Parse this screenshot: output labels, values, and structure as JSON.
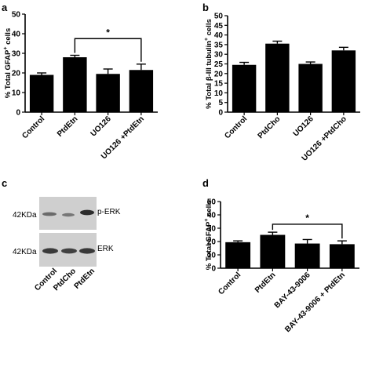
{
  "panels": [
    {
      "letter": "a"
    },
    {
      "letter": "b"
    },
    {
      "letter": "c"
    },
    {
      "letter": "d"
    }
  ],
  "chart_data": [
    {
      "panel": "a",
      "type": "bar",
      "ylabel_parts": [
        "% Total GFAP",
        "+",
        " cells"
      ],
      "ylim": [
        0,
        50
      ],
      "yticks": [
        0,
        10,
        20,
        30,
        40,
        50
      ],
      "categories": [
        "Control",
        "PtdEtn",
        "UO126",
        "UO126 +PtdEtn"
      ],
      "values": [
        19,
        28,
        19.5,
        21.5
      ],
      "errors": [
        1,
        1,
        2.5,
        3
      ],
      "significance": [
        {
          "from": 1,
          "to": 3,
          "label": "*",
          "at": 37.5
        }
      ]
    },
    {
      "panel": "b",
      "type": "bar",
      "ylabel_parts": [
        "% Total β-III tubulin",
        "+",
        " cells"
      ],
      "ylim": [
        0,
        50
      ],
      "yticks": [
        0,
        5,
        10,
        15,
        20,
        25,
        30,
        35,
        40,
        45,
        50
      ],
      "categories": [
        "Control",
        "PtdCho",
        "UO126",
        "UO126 +PtdCho"
      ],
      "values": [
        24.5,
        35.5,
        25,
        32
      ],
      "errors": [
        1.3,
        1.3,
        1,
        1.6
      ],
      "significance": []
    },
    {
      "panel": "d",
      "type": "bar",
      "ylabel_parts": [
        "% Total GFAP",
        "+",
        " cells"
      ],
      "ylim": [
        0,
        50
      ],
      "yticks": [
        0,
        10,
        20,
        30,
        40,
        50
      ],
      "categories": [
        "Control",
        "PtdEtn",
        "BAY-43-9006",
        "BAY-43-9006 + PtdEtn"
      ],
      "values": [
        19.5,
        25,
        18.5,
        18
      ],
      "errors": [
        1,
        2,
        3,
        2.5
      ],
      "significance": [
        {
          "from": 1,
          "to": 3,
          "label": "*",
          "at": 33
        }
      ]
    }
  ],
  "blot": {
    "rows": [
      {
        "kda": "42KDa",
        "label": "p-ERK"
      },
      {
        "kda": "42KDa",
        "label": "ERK"
      }
    ],
    "lanes": [
      "Control",
      "PtdCho",
      "PtdEtn"
    ]
  },
  "colors": {
    "bar": "#000000",
    "blot_bg": "#cfcfcf"
  }
}
